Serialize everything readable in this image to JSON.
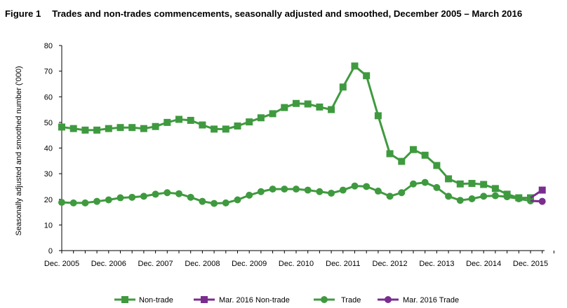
{
  "figure": {
    "number": "Figure 1",
    "title": "Trades and non-trades commencements, seasonally adjusted and smoothed, December 2005 – March 2016"
  },
  "colors": {
    "green": "#3f9a3f",
    "purple": "#7a2d8f",
    "axis": "#000000"
  },
  "chart_data": {
    "type": "line",
    "title": "Trades and non-trades commencements, seasonally adjusted and smoothed, December 2005 – March 2016",
    "xlabel": "",
    "ylabel": "Seasonally adjusted and smoothed number ('000)",
    "ylim": [
      0,
      80
    ],
    "yticks": [
      0,
      10,
      20,
      30,
      40,
      50,
      60,
      70,
      80
    ],
    "grid": false,
    "legend_position": "bottom",
    "x_count": 42,
    "x_tick_labels": [
      {
        "index": 0,
        "label": "Dec. 2005"
      },
      {
        "index": 4,
        "label": "Dec. 2006"
      },
      {
        "index": 8,
        "label": "Dec. 2007"
      },
      {
        "index": 12,
        "label": "Dec. 2008"
      },
      {
        "index": 16,
        "label": "Dec. 2009"
      },
      {
        "index": 20,
        "label": "Dec. 2010"
      },
      {
        "index": 24,
        "label": "Dec. 2011"
      },
      {
        "index": 28,
        "label": "Dec. 2012"
      },
      {
        "index": 32,
        "label": "Dec. 2013"
      },
      {
        "index": 36,
        "label": "Dec. 2014"
      },
      {
        "index": 40,
        "label": "Dec. 2015"
      }
    ],
    "series": [
      {
        "name": "Non-trade",
        "marker": "square",
        "color": "#3f9a3f",
        "start_index": 0,
        "values": [
          48.2,
          47.6,
          47.0,
          47.0,
          47.6,
          48.0,
          48.0,
          47.6,
          48.4,
          50.0,
          51.2,
          50.8,
          49.0,
          47.4,
          47.4,
          48.6,
          50.2,
          51.8,
          53.4,
          55.8,
          57.4,
          57.2,
          56.0,
          55.0,
          63.8,
          72.0,
          68.2,
          52.6,
          37.8,
          34.8,
          39.4,
          37.2,
          33.2,
          28.0,
          26.0,
          26.2,
          25.8,
          24.2,
          22.0,
          20.6,
          20.6
        ]
      },
      {
        "name": "Mar. 2016 Non-trade",
        "marker": "square",
        "color": "#7a2d8f",
        "start_index": 40,
        "values": [
          20.6,
          23.6
        ]
      },
      {
        "name": "Trade",
        "marker": "circle",
        "color": "#3f9a3f",
        "start_index": 0,
        "values": [
          18.8,
          18.6,
          18.6,
          19.2,
          19.8,
          20.6,
          20.8,
          21.2,
          22.0,
          22.6,
          22.2,
          20.8,
          19.2,
          18.4,
          18.6,
          19.8,
          21.6,
          23.0,
          24.0,
          24.0,
          24.0,
          23.6,
          23.0,
          22.4,
          23.6,
          25.2,
          25.0,
          23.2,
          21.2,
          22.6,
          26.0,
          26.6,
          24.6,
          21.2,
          19.6,
          20.2,
          21.2,
          21.4,
          21.0,
          20.2,
          19.4
        ]
      },
      {
        "name": "Mar. 2016 Trade",
        "marker": "circle",
        "color": "#7a2d8f",
        "start_index": 40,
        "values": [
          19.4,
          19.2
        ]
      }
    ]
  }
}
